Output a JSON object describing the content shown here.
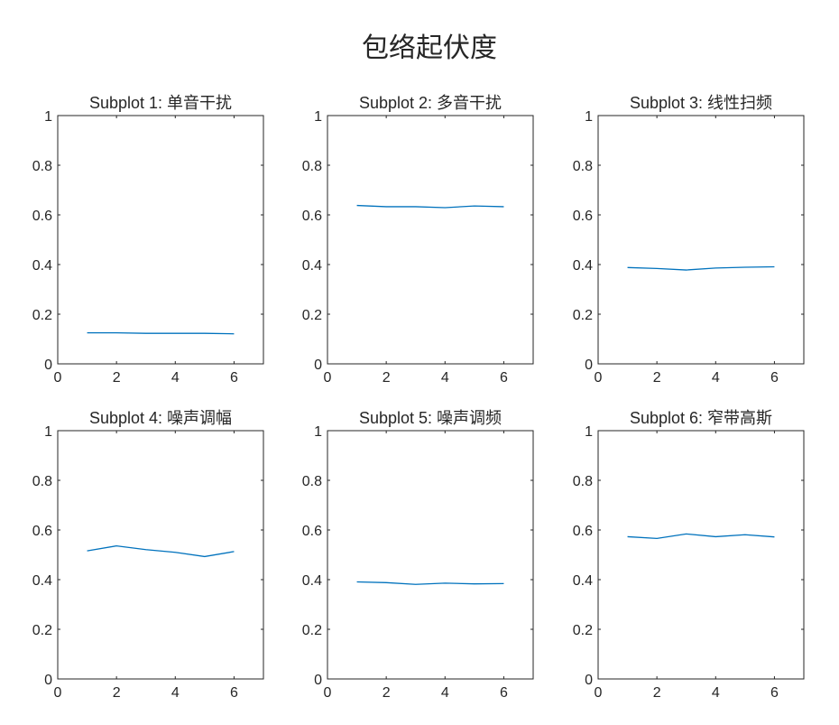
{
  "figure": {
    "title": "包络起伏度"
  },
  "colors": {
    "axis": "#262626",
    "series": "#0072BD"
  },
  "chart_data": [
    {
      "type": "line",
      "title": "Subplot 1: 单音干扰",
      "x": [
        1,
        2,
        3,
        4,
        5,
        6
      ],
      "series": [
        {
          "values": [
            0.125,
            0.125,
            0.123,
            0.123,
            0.123,
            0.121
          ]
        }
      ],
      "xlim": [
        0,
        7
      ],
      "ylim": [
        0,
        1
      ],
      "xticks": [
        0,
        2,
        4,
        6
      ],
      "yticks": [
        0,
        0.2,
        0.4,
        0.6,
        0.8,
        1
      ],
      "xtick_labels": [
        "0",
        "2",
        "4",
        "6"
      ],
      "ytick_labels": [
        "0",
        "0.2",
        "0.4",
        "0.6",
        "0.8",
        "1"
      ],
      "grid": false
    },
    {
      "type": "line",
      "title": "Subplot 2: 多音干扰",
      "x": [
        1,
        2,
        3,
        4,
        5,
        6
      ],
      "series": [
        {
          "values": [
            0.638,
            0.633,
            0.633,
            0.629,
            0.636,
            0.633
          ]
        }
      ],
      "xlim": [
        0,
        7
      ],
      "ylim": [
        0,
        1
      ],
      "xticks": [
        0,
        2,
        4,
        6
      ],
      "yticks": [
        0,
        0.2,
        0.4,
        0.6,
        0.8,
        1
      ],
      "xtick_labels": [
        "0",
        "2",
        "4",
        "6"
      ],
      "ytick_labels": [
        "0",
        "0.2",
        "0.4",
        "0.6",
        "0.8",
        "1"
      ],
      "grid": false
    },
    {
      "type": "line",
      "title": "Subplot 3: 线性扫频",
      "x": [
        1,
        2,
        3,
        4,
        5,
        6
      ],
      "series": [
        {
          "values": [
            0.388,
            0.384,
            0.378,
            0.386,
            0.389,
            0.391
          ]
        }
      ],
      "xlim": [
        0,
        7
      ],
      "ylim": [
        0,
        1
      ],
      "xticks": [
        0,
        2,
        4,
        6
      ],
      "yticks": [
        0,
        0.2,
        0.4,
        0.6,
        0.8,
        1
      ],
      "xtick_labels": [
        "0",
        "2",
        "4",
        "6"
      ],
      "ytick_labels": [
        "0",
        "0.2",
        "0.4",
        "0.6",
        "0.8",
        "1"
      ],
      "grid": false
    },
    {
      "type": "line",
      "title": "Subplot 4: 噪声调幅",
      "x": [
        1,
        2,
        3,
        4,
        5,
        6
      ],
      "series": [
        {
          "values": [
            0.516,
            0.536,
            0.521,
            0.51,
            0.493,
            0.513
          ]
        }
      ],
      "xlim": [
        0,
        7
      ],
      "ylim": [
        0,
        1
      ],
      "xticks": [
        0,
        2,
        4,
        6
      ],
      "yticks": [
        0,
        0.2,
        0.4,
        0.6,
        0.8,
        1
      ],
      "xtick_labels": [
        "0",
        "2",
        "4",
        "6"
      ],
      "ytick_labels": [
        "0",
        "0.2",
        "0.4",
        "0.6",
        "0.8",
        "1"
      ],
      "grid": false
    },
    {
      "type": "line",
      "title": "Subplot 5: 噪声调频",
      "x": [
        1,
        2,
        3,
        4,
        5,
        6
      ],
      "series": [
        {
          "values": [
            0.391,
            0.388,
            0.381,
            0.386,
            0.383,
            0.384
          ]
        }
      ],
      "xlim": [
        0,
        7
      ],
      "ylim": [
        0,
        1
      ],
      "xticks": [
        0,
        2,
        4,
        6
      ],
      "yticks": [
        0,
        0.2,
        0.4,
        0.6,
        0.8,
        1
      ],
      "xtick_labels": [
        "0",
        "2",
        "4",
        "6"
      ],
      "ytick_labels": [
        "0",
        "0.2",
        "0.4",
        "0.6",
        "0.8",
        "1"
      ],
      "grid": false
    },
    {
      "type": "line",
      "title": "Subplot 6: 窄带高斯",
      "x": [
        1,
        2,
        3,
        4,
        5,
        6
      ],
      "series": [
        {
          "values": [
            0.573,
            0.566,
            0.584,
            0.573,
            0.581,
            0.572
          ]
        }
      ],
      "xlim": [
        0,
        7
      ],
      "ylim": [
        0,
        1
      ],
      "xticks": [
        0,
        2,
        4,
        6
      ],
      "yticks": [
        0,
        0.2,
        0.4,
        0.6,
        0.8,
        1
      ],
      "xtick_labels": [
        "0",
        "2",
        "4",
        "6"
      ],
      "ytick_labels": [
        "0",
        "0.2",
        "0.4",
        "0.6",
        "0.8",
        "1"
      ],
      "grid": false
    }
  ]
}
